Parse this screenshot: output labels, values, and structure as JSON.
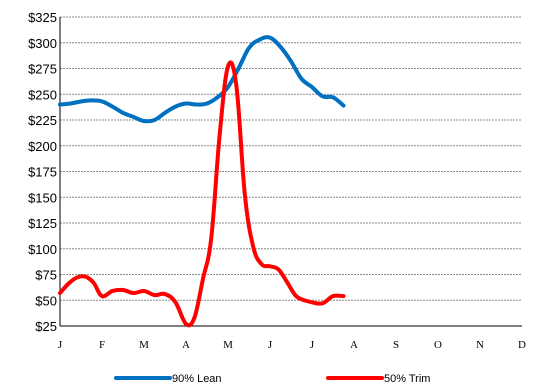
{
  "chart_data": {
    "type": "line",
    "title": "",
    "xlabel": "",
    "ylabel": "",
    "categories": [
      "J",
      "F",
      "M",
      "A",
      "M",
      "J",
      "J",
      "A",
      "S",
      "O",
      "N",
      "D"
    ],
    "ylim": [
      25,
      325
    ],
    "yticks": [
      25,
      50,
      75,
      100,
      125,
      150,
      175,
      200,
      225,
      250,
      275,
      300,
      325
    ],
    "ytick_labels": [
      "$25",
      "$50",
      "$75",
      "$100",
      "$125",
      "$150",
      "$175",
      "$200",
      "$225",
      "$250",
      "$275",
      "$300",
      "$325"
    ],
    "grid": true,
    "legend_position": "bottom",
    "series": [
      {
        "name": "90% Lean",
        "color": "#0070C0",
        "x": [
          0,
          0.25,
          0.5,
          0.75,
          1.0,
          1.25,
          1.5,
          1.75,
          2.0,
          2.25,
          2.5,
          2.75,
          3.0,
          3.25,
          3.5,
          3.75,
          4.0,
          4.25,
          4.5,
          4.75,
          5.0,
          5.25,
          5.5,
          5.75,
          6.0,
          6.25,
          6.5,
          6.75
        ],
        "values": [
          240,
          241,
          243,
          244,
          243,
          238,
          232,
          228,
          224,
          225,
          232,
          238,
          241,
          240,
          241,
          247,
          257,
          275,
          295,
          303,
          305,
          296,
          282,
          265,
          257,
          248,
          247,
          239
        ]
      },
      {
        "name": "50% Trim",
        "color": "#FF0000",
        "x": [
          0,
          0.2,
          0.4,
          0.6,
          0.8,
          1.0,
          1.25,
          1.5,
          1.75,
          2.0,
          2.25,
          2.5,
          2.75,
          3.0,
          3.2,
          3.4,
          3.6,
          3.8,
          4.0,
          4.2,
          4.4,
          4.6,
          4.8,
          5.0,
          5.2,
          5.4,
          5.6,
          5.75,
          6.0,
          6.25,
          6.5,
          6.75
        ],
        "values": [
          57,
          66,
          72,
          73,
          67,
          54,
          59,
          60,
          57,
          59,
          55,
          56,
          48,
          27,
          33,
          70,
          110,
          210,
          277,
          258,
          153,
          102,
          85,
          83,
          80,
          68,
          55,
          51,
          48,
          47,
          54,
          54
        ]
      }
    ]
  }
}
